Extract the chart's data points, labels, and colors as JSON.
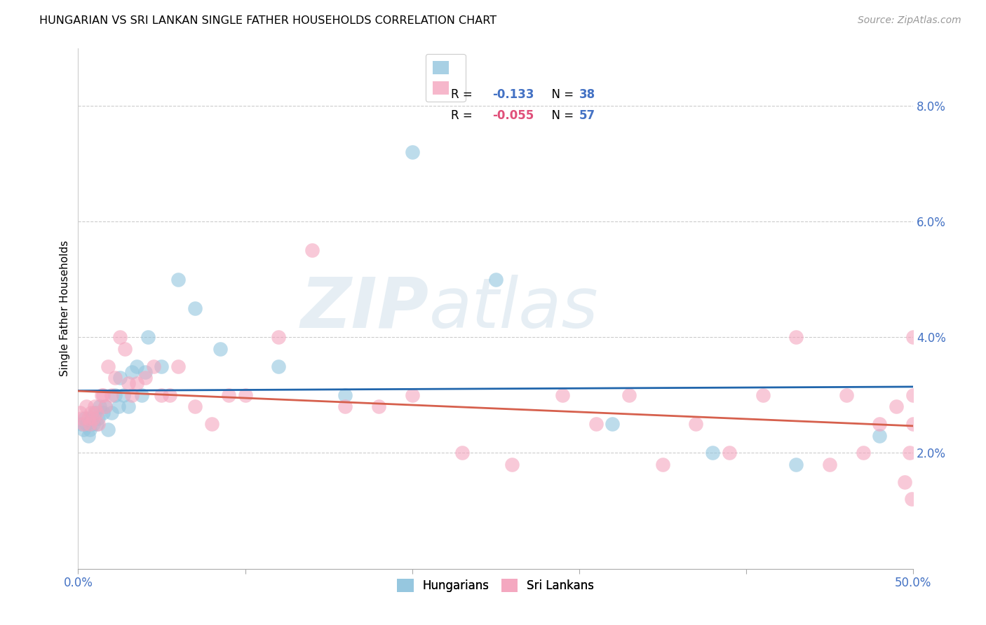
{
  "title": "HUNGARIAN VS SRI LANKAN SINGLE FATHER HOUSEHOLDS CORRELATION CHART",
  "source": "Source: ZipAtlas.com",
  "ylabel": "Single Father Households",
  "xlim": [
    0.0,
    0.5
  ],
  "ylim": [
    0.0,
    0.09
  ],
  "xticks": [
    0.0,
    0.1,
    0.2,
    0.3,
    0.4,
    0.5
  ],
  "xticklabels_show": [
    "0.0%",
    "",
    "",
    "",
    "",
    "50.0%"
  ],
  "yticks": [
    0.02,
    0.04,
    0.06,
    0.08
  ],
  "yticklabels": [
    "2.0%",
    "4.0%",
    "6.0%",
    "8.0%"
  ],
  "blue_color": "#92c5de",
  "pink_color": "#f4a5be",
  "blue_line_color": "#2166ac",
  "pink_line_color": "#d6604d",
  "watermark_zip": "ZIP",
  "watermark_atlas": "atlas",
  "blue_scatter_x": [
    0.002,
    0.003,
    0.004,
    0.005,
    0.006,
    0.007,
    0.008,
    0.009,
    0.01,
    0.011,
    0.012,
    0.013,
    0.015,
    0.016,
    0.018,
    0.02,
    0.022,
    0.024,
    0.025,
    0.027,
    0.03,
    0.032,
    0.035,
    0.038,
    0.04,
    0.042,
    0.05,
    0.06,
    0.07,
    0.085,
    0.12,
    0.16,
    0.2,
    0.25,
    0.32,
    0.38,
    0.43,
    0.48
  ],
  "blue_scatter_y": [
    0.025,
    0.024,
    0.026,
    0.025,
    0.023,
    0.024,
    0.026,
    0.025,
    0.027,
    0.025,
    0.026,
    0.028,
    0.027,
    0.028,
    0.024,
    0.027,
    0.03,
    0.028,
    0.033,
    0.03,
    0.028,
    0.034,
    0.035,
    0.03,
    0.034,
    0.04,
    0.035,
    0.05,
    0.045,
    0.038,
    0.035,
    0.03,
    0.072,
    0.05,
    0.025,
    0.02,
    0.018,
    0.023
  ],
  "pink_scatter_x": [
    0.001,
    0.002,
    0.003,
    0.005,
    0.006,
    0.007,
    0.008,
    0.009,
    0.01,
    0.011,
    0.012,
    0.014,
    0.015,
    0.016,
    0.018,
    0.02,
    0.022,
    0.025,
    0.028,
    0.03,
    0.032,
    0.035,
    0.04,
    0.045,
    0.05,
    0.055,
    0.06,
    0.07,
    0.08,
    0.09,
    0.1,
    0.12,
    0.14,
    0.16,
    0.18,
    0.2,
    0.23,
    0.26,
    0.29,
    0.31,
    0.33,
    0.35,
    0.37,
    0.39,
    0.41,
    0.43,
    0.45,
    0.46,
    0.47,
    0.48,
    0.49,
    0.495,
    0.498,
    0.499,
    0.5,
    0.5,
    0.5
  ],
  "pink_scatter_y": [
    0.027,
    0.026,
    0.025,
    0.028,
    0.026,
    0.025,
    0.027,
    0.026,
    0.028,
    0.027,
    0.025,
    0.03,
    0.03,
    0.028,
    0.035,
    0.03,
    0.033,
    0.04,
    0.038,
    0.032,
    0.03,
    0.032,
    0.033,
    0.035,
    0.03,
    0.03,
    0.035,
    0.028,
    0.025,
    0.03,
    0.03,
    0.04,
    0.055,
    0.028,
    0.028,
    0.03,
    0.02,
    0.018,
    0.03,
    0.025,
    0.03,
    0.018,
    0.025,
    0.02,
    0.03,
    0.04,
    0.018,
    0.03,
    0.02,
    0.025,
    0.028,
    0.015,
    0.02,
    0.012,
    0.04,
    0.03,
    0.025
  ]
}
